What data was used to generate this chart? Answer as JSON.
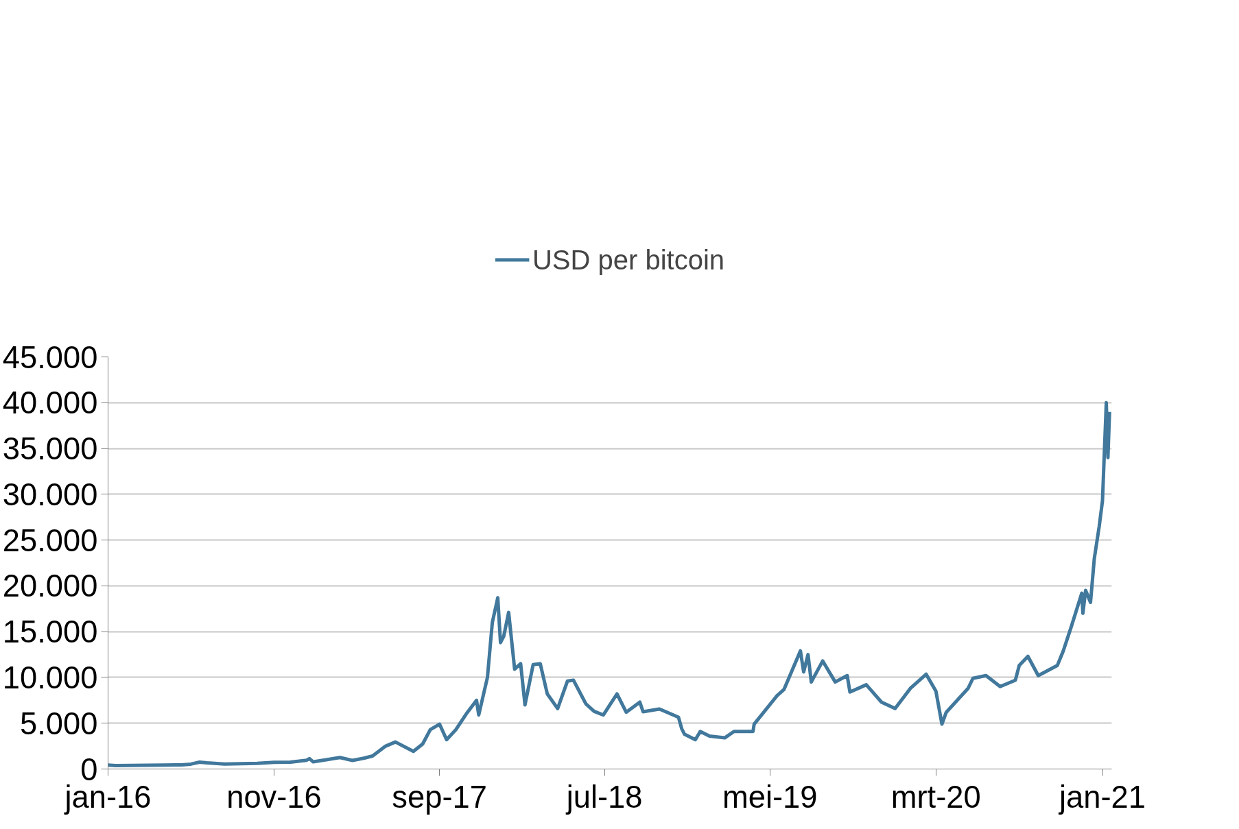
{
  "chart_data": {
    "type": "line",
    "legend": "top",
    "grid": "y",
    "line_style": "solid",
    "xlim": [
      "2016-01-01",
      "2021-01-18"
    ],
    "xticks": [
      {
        "value": "2016-01-01",
        "label": "jan-16"
      },
      {
        "value": "2016-11-01",
        "label": "nov-16"
      },
      {
        "value": "2017-09-01",
        "label": "sep-17"
      },
      {
        "value": "2018-07-01",
        "label": "jul-18"
      },
      {
        "value": "2019-05-01",
        "label": "mei-19"
      },
      {
        "value": "2020-03-01",
        "label": "mrt-20"
      },
      {
        "value": "2021-01-01",
        "label": "jan-21"
      }
    ],
    "ylim": [
      0,
      45000
    ],
    "yticks": [
      {
        "value": 0,
        "label": "0"
      },
      {
        "value": 5000,
        "label": "5.000"
      },
      {
        "value": 10000,
        "label": "10.000"
      },
      {
        "value": 15000,
        "label": "15.000"
      },
      {
        "value": 20000,
        "label": "20.000"
      },
      {
        "value": 25000,
        "label": "25.000"
      },
      {
        "value": 30000,
        "label": "30.000"
      },
      {
        "value": 35000,
        "label": "35.000"
      },
      {
        "value": 40000,
        "label": "40.000"
      },
      {
        "value": 45000,
        "label": "45.000"
      }
    ],
    "x": [
      "2016-01-01",
      "2016-01-15",
      "2016-02-15",
      "2016-03-15",
      "2016-04-15",
      "2016-05-15",
      "2016-06-01",
      "2016-06-17",
      "2016-07-01",
      "2016-08-02",
      "2016-09-01",
      "2016-10-01",
      "2016-11-01",
      "2016-12-01",
      "2016-12-31",
      "2017-01-05",
      "2017-01-12",
      "2017-02-01",
      "2017-03-02",
      "2017-03-25",
      "2017-04-15",
      "2017-05-01",
      "2017-05-25",
      "2017-06-12",
      "2017-07-15",
      "2017-08-01",
      "2017-08-15",
      "2017-09-01",
      "2017-09-14",
      "2017-10-01",
      "2017-10-20",
      "2017-11-08",
      "2017-11-12",
      "2017-11-28",
      "2017-12-07",
      "2017-12-17",
      "2017-12-22",
      "2017-12-28",
      "2018-01-06",
      "2018-01-17",
      "2018-01-28",
      "2018-02-05",
      "2018-02-20",
      "2018-03-05",
      "2018-03-18",
      "2018-04-06",
      "2018-04-24",
      "2018-05-05",
      "2018-05-28",
      "2018-06-12",
      "2018-06-29",
      "2018-07-24",
      "2018-08-10",
      "2018-09-04",
      "2018-09-10",
      "2018-10-10",
      "2018-11-14",
      "2018-11-20",
      "2018-11-25",
      "2018-12-15",
      "2018-12-24",
      "2019-01-10",
      "2019-02-07",
      "2019-02-24",
      "2019-03-31",
      "2019-04-02",
      "2019-05-14",
      "2019-05-27",
      "2019-06-26",
      "2019-07-02",
      "2019-07-10",
      "2019-07-16",
      "2019-08-06",
      "2019-08-29",
      "2019-09-20",
      "2019-09-25",
      "2019-10-25",
      "2019-11-22",
      "2019-12-17",
      "2020-01-14",
      "2020-02-12",
      "2020-03-01",
      "2020-03-12",
      "2020-03-20",
      "2020-04-29",
      "2020-05-08",
      "2020-06-01",
      "2020-06-27",
      "2020-07-25",
      "2020-08-01",
      "2020-08-17",
      "2020-09-05",
      "2020-10-10",
      "2020-10-21",
      "2020-11-05",
      "2020-11-24",
      "2020-11-26",
      "2020-12-01",
      "2020-12-10",
      "2020-12-17",
      "2020-12-26",
      "2021-01-01",
      "2021-01-08",
      "2021-01-11",
      "2021-01-13",
      "2021-01-14"
    ],
    "series": [
      {
        "name": "USD per bitcoin",
        "color": "#41789c",
        "values": [
          430,
          380,
          400,
          415,
          430,
          455,
          530,
          750,
          670,
          540,
          575,
          615,
          730,
          750,
          960,
          1130,
          780,
          970,
          1250,
          935,
          1180,
          1420,
          2500,
          2950,
          1930,
          2730,
          4300,
          4900,
          3200,
          4300,
          6000,
          7500,
          5900,
          10000,
          16000,
          18700,
          13800,
          14500,
          17100,
          10900,
          11500,
          7000,
          11400,
          11500,
          8200,
          6600,
          9600,
          9700,
          7100,
          6300,
          5900,
          8200,
          6200,
          7300,
          6250,
          6550,
          5650,
          4400,
          3800,
          3200,
          4100,
          3600,
          3400,
          4100,
          4100,
          4900,
          8000,
          8700,
          12900,
          10600,
          12500,
          9500,
          11800,
          9500,
          10200,
          8400,
          9200,
          7300,
          6600,
          8800,
          10350,
          8500,
          4900,
          6200,
          8800,
          9900,
          10200,
          9000,
          9700,
          11300,
          12300,
          10200,
          11300,
          12900,
          15600,
          19200,
          17000,
          19500,
          18200,
          23000,
          26500,
          29300,
          40000,
          34000,
          37400,
          39000
        ]
      }
    ]
  }
}
